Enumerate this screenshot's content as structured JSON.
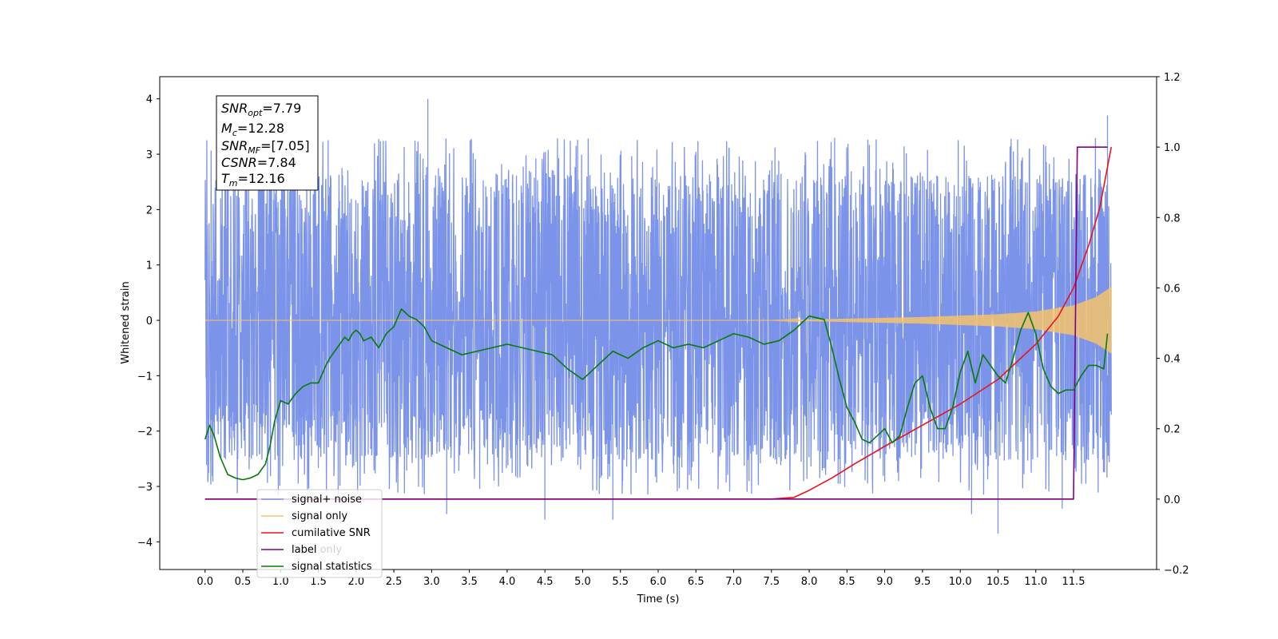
{
  "chart_data": {
    "type": "line",
    "xlabel": "Time (s)",
    "ylabel": "Whitened strain",
    "xlim": [
      -0.6,
      12.6
    ],
    "ylim_left": [
      -4.5,
      4.4
    ],
    "ylim_right": [
      -0.2,
      1.2
    ],
    "x_ticks": [
      "0.0",
      "0.5",
      "1.0",
      "1.5",
      "2.0",
      "2.5",
      "3.0",
      "3.5",
      "4.0",
      "4.5",
      "5.0",
      "5.5",
      "6.0",
      "6.5",
      "7.0",
      "7.5",
      "8.0",
      "8.5",
      "9.0",
      "9.5",
      "10.0",
      "10.5",
      "11.0",
      "11.5"
    ],
    "y_ticks_left": [
      "4",
      "3",
      "2",
      "1",
      "0",
      "−1",
      "−2",
      "−3",
      "−4"
    ],
    "y_ticks_right": [
      "1.2",
      "1.0",
      "0.8",
      "0.6",
      "0.4",
      "0.2",
      "0.0",
      "−0.2"
    ],
    "legend_position": "lower-left",
    "grid": false,
    "info_box": {
      "lines": [
        {
          "sym": "SNR",
          "sub": "opt",
          "val": "=7.79"
        },
        {
          "sym": "M",
          "sub": "c",
          "val": "=12.28"
        },
        {
          "sym": "SNR",
          "sub": "MF",
          "val": "=[7.05]"
        },
        {
          "sym": "CSNR",
          "sub": "",
          "val": "=7.84"
        },
        {
          "sym": "T",
          "sub": "m",
          "val": "=12.16"
        }
      ]
    },
    "series": [
      {
        "name": "signal+ noise",
        "axis": "left",
        "color": "#7b93e8",
        "x_range": [
          0.0,
          12.0
        ],
        "envelope_typical": [
          -2.1,
          2.2
        ],
        "peaks": [
          [
            2.95,
            4.0
          ],
          [
            11.95,
            3.7
          ],
          [
            10.5,
            -3.85
          ],
          [
            5.4,
            -3.6
          ],
          [
            4.5,
            -3.6
          ],
          [
            3.2,
            -3.5
          ],
          [
            10.15,
            -3.5
          ],
          [
            11.35,
            -3.4
          ],
          [
            0.25,
            1.7
          ]
        ]
      },
      {
        "name": "signal only",
        "axis": "left",
        "color": "#f5c26b",
        "amplitude_x": [
          0.0,
          7.5,
          8.5,
          9.5,
          10.5,
          11.0,
          11.5,
          11.8,
          12.0
        ],
        "amplitude_y": [
          0.0,
          0.0,
          0.03,
          0.06,
          0.11,
          0.16,
          0.27,
          0.42,
          0.6
        ]
      },
      {
        "name": "cumilative SNR",
        "axis": "right",
        "color": "#e8141a",
        "x": [
          0.0,
          7.0,
          7.5,
          7.8,
          8.0,
          8.3,
          8.6,
          9.0,
          9.5,
          10.0,
          10.5,
          11.0,
          11.3,
          11.5,
          11.7,
          11.85,
          12.0
        ],
        "y": [
          0.0,
          0.0,
          0.0,
          0.005,
          0.025,
          0.06,
          0.1,
          0.15,
          0.21,
          0.27,
          0.34,
          0.44,
          0.52,
          0.6,
          0.72,
          0.83,
          1.0
        ]
      },
      {
        "name": "label",
        "axis": "right",
        "color": "#800080",
        "x": [
          0.0,
          11.5,
          11.55,
          11.95
        ],
        "y": [
          0.0,
          0.0,
          1.0,
          1.0
        ]
      },
      {
        "name": "label only",
        "axis": "right",
        "color": "#800080",
        "hidden": true
      },
      {
        "name": "signal statistics",
        "axis": "right",
        "color": "#0a7a0a",
        "x": [
          0.0,
          0.06,
          0.12,
          0.2,
          0.3,
          0.4,
          0.5,
          0.6,
          0.7,
          0.8,
          0.86,
          0.92,
          1.0,
          1.1,
          1.2,
          1.3,
          1.4,
          1.5,
          1.6,
          1.65,
          1.75,
          1.85,
          1.9,
          1.95,
          2.0,
          2.05,
          2.1,
          2.2,
          2.3,
          2.4,
          2.5,
          2.6,
          2.7,
          2.8,
          2.9,
          3.0,
          3.2,
          3.4,
          3.6,
          3.8,
          4.0,
          4.2,
          4.4,
          4.6,
          4.8,
          5.0,
          5.2,
          5.4,
          5.6,
          5.8,
          6.0,
          6.2,
          6.4,
          6.6,
          6.8,
          7.0,
          7.2,
          7.4,
          7.6,
          7.8,
          8.0,
          8.2,
          8.3,
          8.4,
          8.5,
          8.6,
          8.7,
          8.8,
          8.9,
          9.0,
          9.1,
          9.2,
          9.3,
          9.4,
          9.5,
          9.6,
          9.7,
          9.8,
          9.9,
          10.0,
          10.1,
          10.2,
          10.3,
          10.4,
          10.5,
          10.6,
          10.7,
          10.8,
          10.9,
          11.0,
          11.1,
          11.2,
          11.3,
          11.4,
          11.5,
          11.6,
          11.7,
          11.8,
          11.9,
          11.95
        ],
        "y": [
          0.17,
          0.21,
          0.18,
          0.12,
          0.07,
          0.06,
          0.055,
          0.06,
          0.07,
          0.1,
          0.15,
          0.22,
          0.28,
          0.27,
          0.3,
          0.32,
          0.33,
          0.33,
          0.38,
          0.4,
          0.43,
          0.46,
          0.45,
          0.47,
          0.48,
          0.47,
          0.45,
          0.46,
          0.43,
          0.47,
          0.49,
          0.54,
          0.52,
          0.51,
          0.49,
          0.45,
          0.43,
          0.41,
          0.42,
          0.43,
          0.44,
          0.43,
          0.42,
          0.41,
          0.37,
          0.34,
          0.38,
          0.42,
          0.4,
          0.43,
          0.45,
          0.43,
          0.44,
          0.43,
          0.45,
          0.47,
          0.46,
          0.44,
          0.45,
          0.48,
          0.52,
          0.51,
          0.43,
          0.34,
          0.26,
          0.22,
          0.17,
          0.16,
          0.18,
          0.2,
          0.16,
          0.18,
          0.26,
          0.33,
          0.35,
          0.26,
          0.2,
          0.2,
          0.26,
          0.36,
          0.42,
          0.33,
          0.41,
          0.38,
          0.35,
          0.33,
          0.4,
          0.48,
          0.53,
          0.47,
          0.37,
          0.32,
          0.3,
          0.31,
          0.31,
          0.35,
          0.38,
          0.38,
          0.37,
          0.47
        ]
      }
    ]
  }
}
